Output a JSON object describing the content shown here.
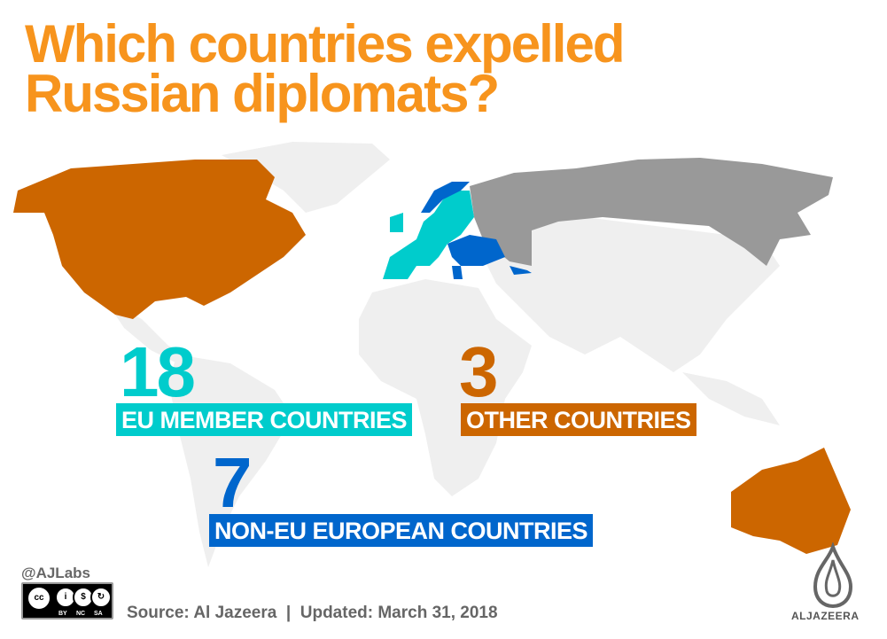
{
  "title": {
    "line1": "Which countries expelled",
    "line2": "Russian diplomats?"
  },
  "colors": {
    "title": "#F7941D",
    "eu": "#00CCCC",
    "non_eu": "#0066CC",
    "other": "#CC6600",
    "russia": "#999999",
    "land": "#EFEFEF"
  },
  "stats": [
    {
      "number": "18",
      "label": "EU MEMBER COUNTRIES",
      "color": "#00CCCC"
    },
    {
      "number": "3",
      "label": "OTHER COUNTRIES",
      "color": "#CC6600"
    },
    {
      "number": "7",
      "label": "NON-EU EUROPEAN COUNTRIES",
      "color": "#0066CC"
    }
  ],
  "footer": {
    "handle": "@AJLabs",
    "license": {
      "icons": [
        "cc-icon",
        "by-icon",
        "nc-icon",
        "sa-icon"
      ],
      "labels": [
        "BY",
        "NC",
        "SA"
      ]
    },
    "source": "Source: Al Jazeera  |  Updated: March 31, 2018",
    "logo_text": "ALJAZEERA"
  }
}
